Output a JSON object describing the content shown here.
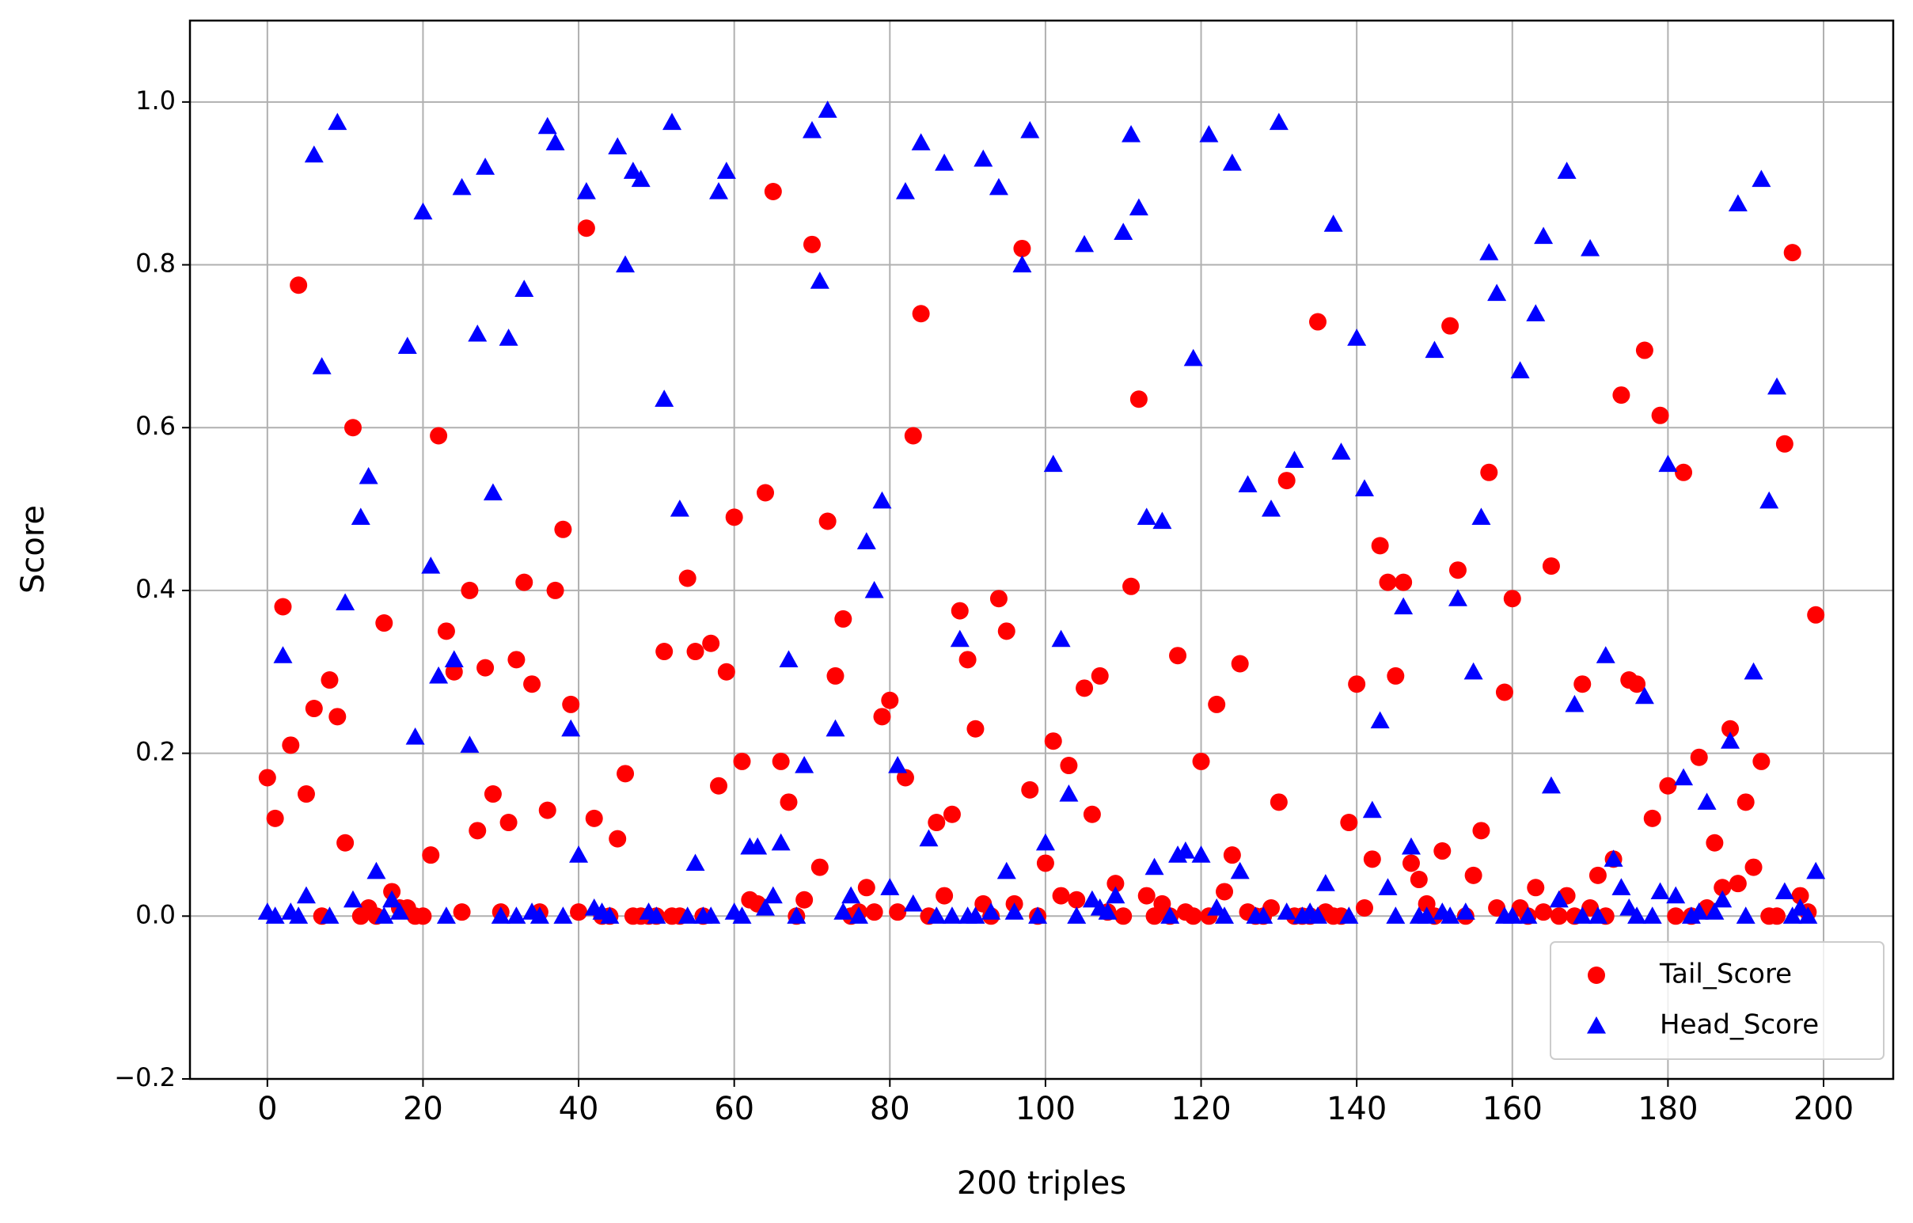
{
  "chart_data": {
    "type": "scatter",
    "x_label": "200 triples",
    "y_label": "Score",
    "x": [
      0,
      1,
      2,
      3,
      4,
      5,
      6,
      7,
      8,
      9,
      10,
      11,
      12,
      13,
      14,
      15,
      16,
      17,
      18,
      19,
      20,
      21,
      22,
      23,
      24,
      25,
      26,
      27,
      28,
      29,
      30,
      31,
      32,
      33,
      34,
      35,
      36,
      37,
      38,
      39,
      40,
      41,
      42,
      43,
      44,
      45,
      46,
      47,
      48,
      49,
      50,
      51,
      52,
      53,
      54,
      55,
      56,
      57,
      58,
      59,
      60,
      61,
      62,
      63,
      64,
      65,
      66,
      67,
      68,
      69,
      70,
      71,
      72,
      73,
      74,
      75,
      76,
      77,
      78,
      79,
      80,
      81,
      82,
      83,
      84,
      85,
      86,
      87,
      88,
      89,
      90,
      91,
      92,
      93,
      94,
      95,
      96,
      97,
      98,
      99,
      100,
      101,
      102,
      103,
      104,
      105,
      106,
      107,
      108,
      109,
      110,
      111,
      112,
      113,
      114,
      115,
      116,
      117,
      118,
      119,
      120,
      121,
      122,
      123,
      124,
      125,
      126,
      127,
      128,
      129,
      130,
      131,
      132,
      133,
      134,
      135,
      136,
      137,
      138,
      139,
      140,
      141,
      142,
      143,
      144,
      145,
      146,
      147,
      148,
      149,
      150,
      151,
      152,
      153,
      154,
      155,
      156,
      157,
      158,
      159,
      160,
      161,
      162,
      163,
      164,
      165,
      166,
      167,
      168,
      169,
      170,
      171,
      172,
      173,
      174,
      175,
      176,
      177,
      178,
      179,
      180,
      181,
      182,
      183,
      184,
      185,
      186,
      187,
      188,
      189,
      190,
      191,
      192,
      193,
      194,
      195,
      196,
      197,
      198,
      199
    ],
    "series": [
      {
        "name": "Tail_Score",
        "color": "#ff0000",
        "marker": "circle",
        "values": [
          0.17,
          0.12,
          0.38,
          0.21,
          0.775,
          0.15,
          0.255,
          0.0,
          0.29,
          0.245,
          0.09,
          0.6,
          0.0,
          0.01,
          0.0,
          0.36,
          0.03,
          0.01,
          0.01,
          0.0,
          0.0,
          0.075,
          0.59,
          0.35,
          0.3,
          0.005,
          0.4,
          0.105,
          0.305,
          0.15,
          0.005,
          0.115,
          0.315,
          0.41,
          0.285,
          0.005,
          0.13,
          0.4,
          0.475,
          0.26,
          0.005,
          0.845,
          0.12,
          0.0,
          0.0,
          0.095,
          0.175,
          0.0,
          0.0,
          0.0,
          0.0,
          0.325,
          0.0,
          0.0,
          0.415,
          0.325,
          0.0,
          0.335,
          0.16,
          0.3,
          0.49,
          0.19,
          0.02,
          0.015,
          0.52,
          0.89,
          0.19,
          0.14,
          0.0,
          0.02,
          0.825,
          0.06,
          0.485,
          0.295,
          0.365,
          0.0,
          0.005,
          0.035,
          0.005,
          0.245,
          0.265,
          0.005,
          0.17,
          0.59,
          0.74,
          0.0,
          0.115,
          0.025,
          0.125,
          0.375,
          0.315,
          0.23,
          0.015,
          0.0,
          0.39,
          0.35,
          0.015,
          0.82,
          0.155,
          0.0,
          0.065,
          0.215,
          0.025,
          0.185,
          0.02,
          0.28,
          0.125,
          0.295,
          0.005,
          0.04,
          0.0,
          0.405,
          0.635,
          0.025,
          0.0,
          0.015,
          0.0,
          0.32,
          0.005,
          0.0,
          0.19,
          0.0,
          0.26,
          0.03,
          0.075,
          0.31,
          0.005,
          0.0,
          0.0,
          0.01,
          0.14,
          0.535,
          0.0,
          0.0,
          0.0,
          0.73,
          0.005,
          0.0,
          0.0,
          0.115,
          0.285,
          0.01,
          0.07,
          0.455,
          0.41,
          0.295,
          0.41,
          0.065,
          0.045,
          0.015,
          0.0,
          0.08,
          0.725,
          0.425,
          0.0,
          0.05,
          0.105,
          0.545,
          0.01,
          0.275,
          0.39,
          0.01,
          0.0,
          0.035,
          0.005,
          0.43,
          0.0,
          0.025,
          0.0,
          0.285,
          0.01,
          0.05,
          0.0,
          0.07,
          0.64,
          0.29,
          0.285,
          0.695,
          0.12,
          0.615,
          0.16,
          0.0,
          0.545,
          0.0,
          0.195,
          0.01,
          0.09,
          0.035,
          0.23,
          0.04,
          0.14,
          0.06,
          0.19,
          0.0,
          0.0,
          0.58,
          0.815,
          0.025,
          0.005,
          0.37
        ]
      },
      {
        "name": "Head_Score",
        "color": "#0000ff",
        "marker": "triangle",
        "values": [
          0.005,
          0.0,
          0.32,
          0.005,
          0.0,
          0.025,
          0.935,
          0.675,
          0.0,
          0.975,
          0.385,
          0.02,
          0.49,
          0.54,
          0.055,
          0.0,
          0.02,
          0.005,
          0.7,
          0.22,
          0.865,
          0.43,
          0.295,
          0.0,
          0.315,
          0.895,
          0.21,
          0.715,
          0.92,
          0.52,
          0.0,
          0.71,
          0.0,
          0.77,
          0.005,
          0.0,
          0.97,
          0.95,
          0.0,
          0.23,
          0.075,
          0.89,
          0.01,
          0.005,
          0.0,
          0.945,
          0.8,
          0.915,
          0.905,
          0.005,
          0.0,
          0.635,
          0.975,
          0.5,
          0.0,
          0.065,
          0.0,
          0.0,
          0.89,
          0.915,
          0.005,
          0.0,
          0.085,
          0.085,
          0.01,
          0.025,
          0.09,
          0.315,
          0.0,
          0.185,
          0.965,
          0.78,
          0.99,
          0.23,
          0.005,
          0.025,
          0.0,
          0.46,
          0.4,
          0.51,
          0.035,
          0.185,
          0.89,
          0.015,
          0.95,
          0.095,
          0.0,
          0.925,
          0.0,
          0.34,
          0.0,
          0.0,
          0.93,
          0.005,
          0.895,
          0.055,
          0.005,
          0.8,
          0.965,
          0.0,
          0.09,
          0.555,
          0.34,
          0.15,
          0.0,
          0.825,
          0.02,
          0.01,
          0.005,
          0.025,
          0.84,
          0.96,
          0.87,
          0.49,
          0.06,
          0.485,
          0.0,
          0.075,
          0.08,
          0.685,
          0.075,
          0.96,
          0.01,
          0.0,
          0.925,
          0.055,
          0.53,
          0.0,
          0.0,
          0.5,
          0.975,
          0.005,
          0.56,
          0.0,
          0.005,
          0.0,
          0.04,
          0.85,
          0.57,
          0.0,
          0.71,
          0.525,
          0.13,
          0.24,
          0.035,
          0.0,
          0.38,
          0.085,
          0.0,
          0.0,
          0.695,
          0.005,
          0.0,
          0.39,
          0.005,
          0.3,
          0.49,
          0.815,
          0.765,
          0.0,
          0.0,
          0.67,
          0.0,
          0.74,
          0.835,
          0.16,
          0.02,
          0.915,
          0.26,
          0.0,
          0.82,
          0.0,
          0.32,
          0.07,
          0.035,
          0.01,
          0.0,
          0.27,
          0.0,
          0.03,
          0.555,
          0.025,
          0.17,
          0.0,
          0.005,
          0.14,
          0.005,
          0.02,
          0.215,
          0.875,
          0.0,
          0.3,
          0.905,
          0.51,
          0.65,
          0.03,
          0.0,
          0.01,
          0.0,
          0.055
        ]
      }
    ],
    "xlim": [
      -9.95,
      208.95
    ],
    "ylim": [
      -0.2,
      1.1
    ],
    "xticks": [
      0,
      20,
      40,
      60,
      80,
      100,
      120,
      140,
      160,
      180,
      200
    ],
    "yticks": [
      {
        "value": -0.2,
        "label": "−0.2"
      },
      {
        "value": 0.0,
        "label": "0.0"
      },
      0.2,
      0.4,
      0.6,
      0.8,
      {
        "value": 1.0,
        "label": "1.0"
      }
    ],
    "grid": true,
    "legend": "lower right"
  }
}
